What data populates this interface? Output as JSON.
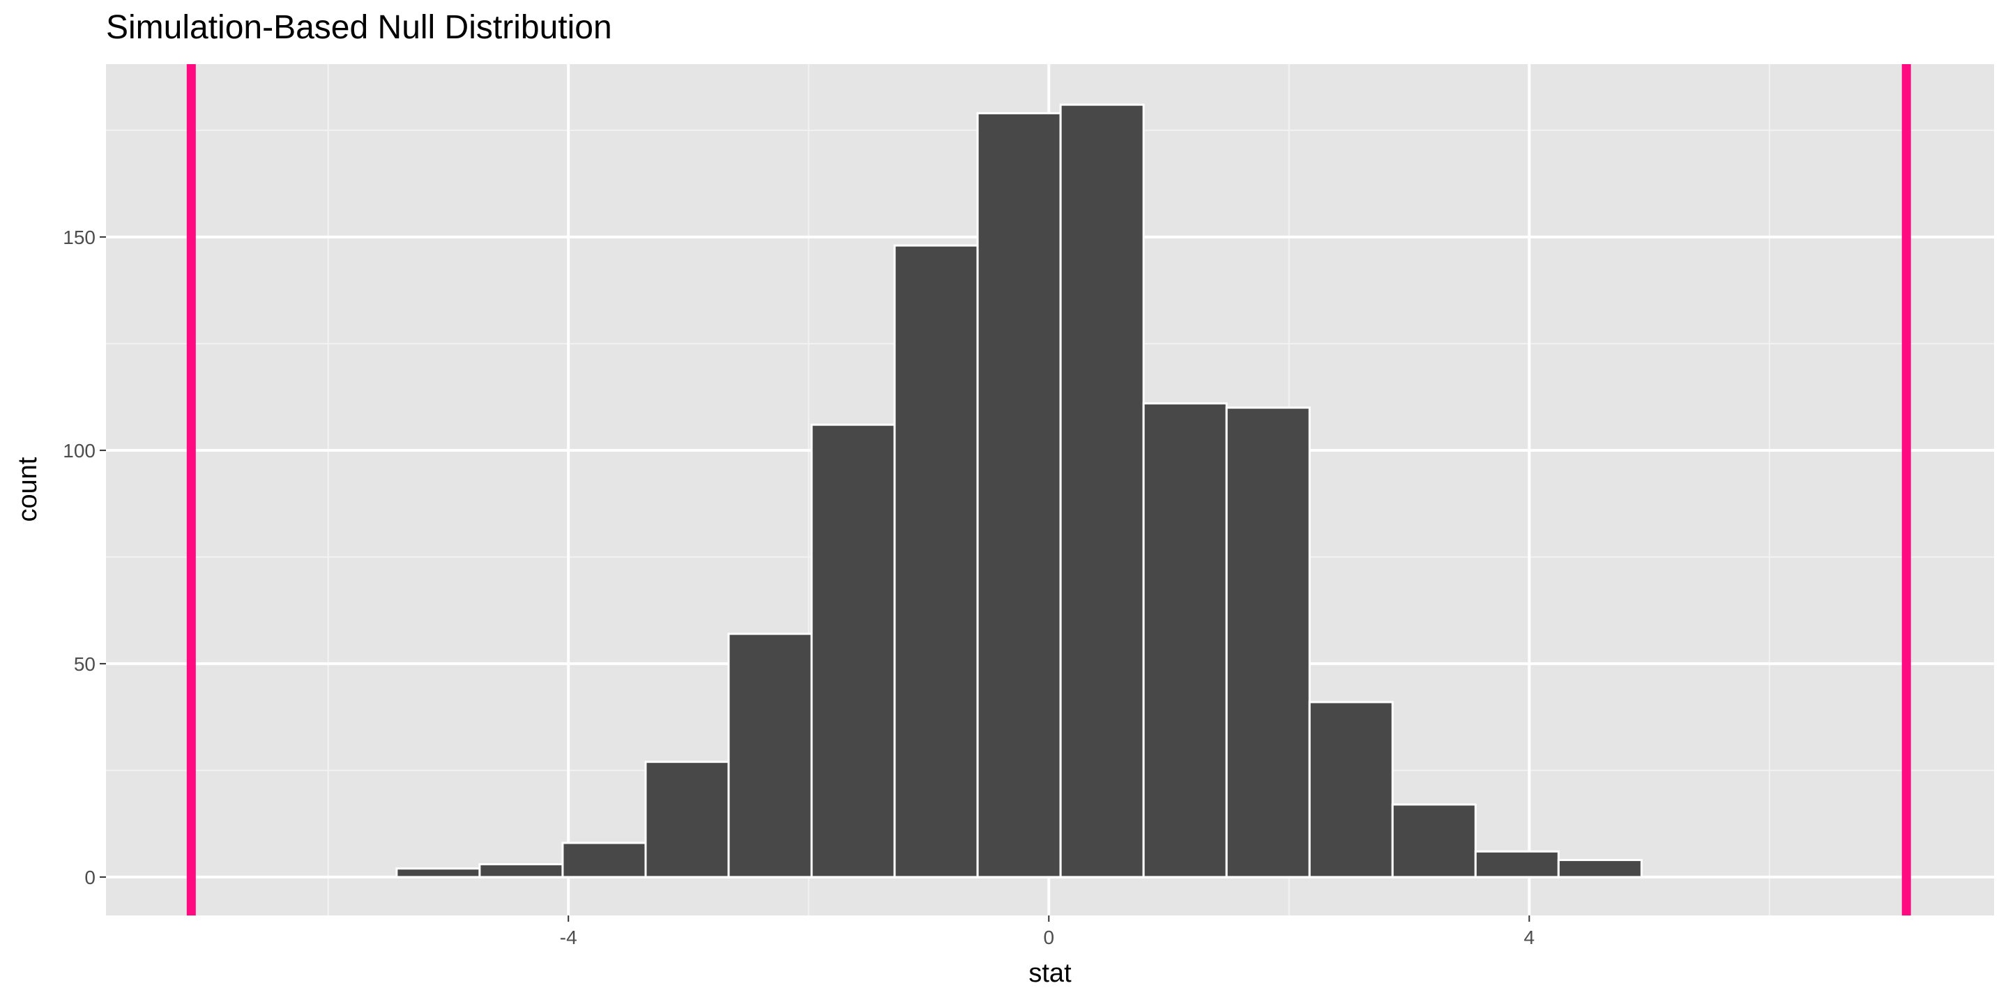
{
  "chart_data": {
    "type": "histogram",
    "title": "Simulation-Based Null Distribution",
    "x_label": "stat",
    "y_label": "count",
    "bins": [
      -5.43,
      -4.739,
      -4.048,
      -3.357,
      -2.666,
      -1.975,
      -1.284,
      -0.593,
      0.098,
      0.789,
      1.48,
      2.171,
      2.862,
      3.553,
      4.244,
      4.935
    ],
    "values": [
      2,
      3,
      8,
      27,
      57,
      106,
      148,
      179,
      181,
      111,
      110,
      41,
      17,
      6,
      4
    ],
    "color": "#484848",
    "xlim": [
      -7.85,
      7.87
    ],
    "ylim": [
      -9,
      190.5
    ],
    "xticks": [
      -4,
      0,
      4
    ],
    "yticks": [
      0,
      50,
      100,
      150
    ],
    "x_minor_grid": [
      -6,
      -2,
      2,
      6
    ],
    "y_minor_grid": [
      25,
      75,
      125,
      175
    ],
    "vlines": [
      {
        "value": -7.14,
        "color": "#ff0a80"
      },
      {
        "value": 7.14,
        "color": "#ff0a80"
      }
    ],
    "grid": true
  }
}
